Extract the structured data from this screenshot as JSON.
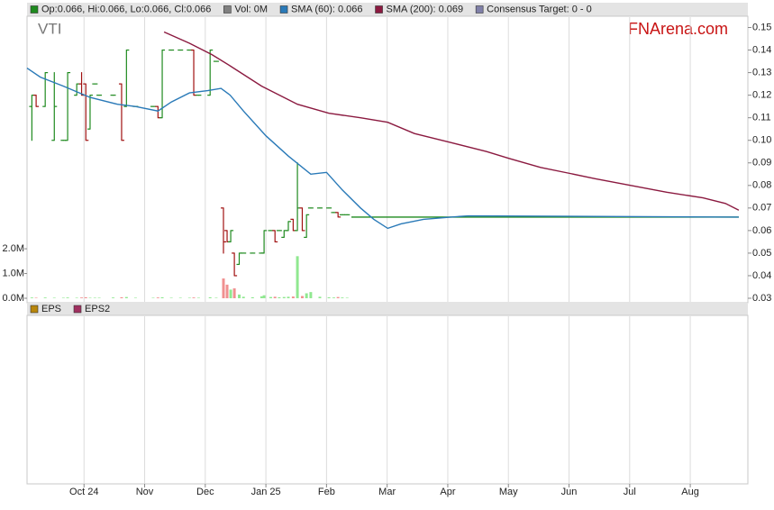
{
  "chart_data": {
    "type": "ohlc",
    "ticker": "VTI",
    "watermark": "FNArena.com",
    "xlim": [
      0.06,
      11.95
    ],
    "xticks": [
      {
        "value": 1,
        "label": "Oct 24"
      },
      {
        "value": 2,
        "label": "Nov"
      },
      {
        "value": 3,
        "label": "Dec"
      },
      {
        "value": 4,
        "label": "Jan 25"
      },
      {
        "value": 5,
        "label": "Feb"
      },
      {
        "value": 6,
        "label": "Mar"
      },
      {
        "value": 7,
        "label": "Apr"
      },
      {
        "value": 8,
        "label": "May"
      },
      {
        "value": 9,
        "label": "Jun"
      },
      {
        "value": 10,
        "label": "Jul"
      },
      {
        "value": 11,
        "label": "Aug"
      }
    ],
    "grid": "x",
    "ylim": [
      0.03,
      0.155
    ],
    "yticks": [
      0.03,
      0.04,
      0.05,
      0.06,
      0.07,
      0.08,
      0.09,
      {
        "value": 0.1,
        "label": "0.10"
      },
      0.11,
      0.12,
      0.13,
      0.14,
      0.15
    ],
    "vol_ylim": [
      0,
      11400000
    ],
    "vol_yticks": [
      {
        "value": 0,
        "label": "0.0M"
      },
      {
        "value": 1000000,
        "label": "1.0M"
      },
      {
        "value": 2000000,
        "label": "2.0M"
      }
    ],
    "price": {
      "name": "Op:0.066, Hi:0.066, Lo:0.066, Cl:0.066",
      "up_color": "#1f8a1f",
      "down_color": "#a01010",
      "x": [
        0.14,
        0.21,
        0.36,
        0.51,
        0.66,
        0.73,
        0.88,
        0.96,
        1.03,
        1.1,
        1.18,
        1.25,
        1.48,
        1.62,
        1.7,
        1.85,
        2.14,
        2.22,
        2.29,
        2.44,
        2.59,
        2.74,
        2.81,
        2.89,
        3.08,
        3.18,
        3.3,
        3.36,
        3.42,
        3.48,
        3.56,
        3.63,
        3.78,
        3.93,
        3.97,
        4.08,
        4.15,
        4.22,
        4.3,
        4.37,
        4.45,
        4.52,
        4.6,
        4.67,
        4.74,
        4.89,
        5.04,
        5.12,
        5.19,
        5.26,
        5.34
      ],
      "open": [
        0.115,
        0.12,
        0.115,
        0.1,
        0.1,
        0.1,
        0.12,
        0.125,
        0.125,
        0.105,
        0.125,
        0.12,
        0.12,
        0.125,
        0.115,
        0.115,
        0.115,
        0.115,
        0.11,
        0.14,
        0.14,
        0.14,
        0.14,
        0.12,
        0.12,
        0.135,
        0.07,
        0.06,
        0.055,
        0.05,
        0.045,
        0.05,
        0.05,
        0.05,
        0.05,
        0.06,
        0.06,
        0.06,
        0.057,
        0.06,
        0.065,
        0.06,
        0.07,
        0.057,
        0.07,
        0.07,
        0.07,
        0.068,
        0.068,
        0.067,
        0.067
      ],
      "high": [
        0.12,
        0.12,
        0.13,
        0.13,
        0.1,
        0.13,
        0.125,
        0.13,
        0.125,
        0.12,
        0.125,
        0.12,
        0.12,
        0.125,
        0.14,
        0.115,
        0.115,
        0.115,
        0.14,
        0.14,
        0.14,
        0.14,
        0.14,
        0.12,
        0.14,
        0.135,
        0.07,
        0.06,
        0.06,
        0.05,
        0.05,
        0.05,
        0.05,
        0.05,
        0.06,
        0.06,
        0.06,
        0.06,
        0.06,
        0.064,
        0.065,
        0.09,
        0.07,
        0.067,
        0.07,
        0.07,
        0.07,
        0.068,
        0.068,
        0.067,
        0.067
      ],
      "low": [
        0.1,
        0.115,
        0.115,
        0.1,
        0.1,
        0.1,
        0.12,
        0.12,
        0.1,
        0.105,
        0.125,
        0.12,
        0.12,
        0.1,
        0.115,
        0.115,
        0.115,
        0.11,
        0.11,
        0.14,
        0.14,
        0.14,
        0.12,
        0.12,
        0.12,
        0.135,
        0.05,
        0.055,
        0.055,
        0.04,
        0.045,
        0.05,
        0.05,
        0.05,
        0.05,
        0.06,
        0.055,
        0.06,
        0.057,
        0.06,
        0.06,
        0.06,
        0.06,
        0.057,
        0.07,
        0.07,
        0.07,
        0.068,
        0.066,
        0.067,
        0.067
      ],
      "close": [
        0.12,
        0.115,
        0.13,
        0.115,
        0.1,
        0.13,
        0.125,
        0.12,
        0.1,
        0.12,
        0.125,
        0.12,
        0.12,
        0.1,
        0.14,
        0.115,
        0.115,
        0.11,
        0.14,
        0.14,
        0.14,
        0.14,
        0.12,
        0.12,
        0.14,
        0.135,
        0.055,
        0.055,
        0.06,
        0.04,
        0.05,
        0.05,
        0.05,
        0.05,
        0.06,
        0.06,
        0.055,
        0.06,
        0.06,
        0.064,
        0.06,
        0.07,
        0.06,
        0.067,
        0.07,
        0.07,
        0.07,
        0.068,
        0.066,
        0.067,
        0.067
      ]
    },
    "last": {
      "x": [
        5.41,
        11.8
      ],
      "values": [
        0.066,
        0.066
      ],
      "color": "#1f8a1f"
    },
    "volume": {
      "name": "Vol: 0M",
      "color": "#808080",
      "up_color": "#90e890",
      "down_color": "#f09090",
      "values": [
        30000,
        20000,
        30000,
        20000,
        20000,
        30000,
        20000,
        30000,
        40000,
        20000,
        20000,
        20000,
        30000,
        40000,
        50000,
        20000,
        20000,
        30000,
        40000,
        20000,
        20000,
        20000,
        30000,
        20000,
        40000,
        20000,
        800000,
        550000,
        350000,
        400000,
        150000,
        60000,
        40000,
        80000,
        120000,
        50000,
        60000,
        40000,
        50000,
        60000,
        70000,
        1700000,
        90000,
        200000,
        250000,
        60000,
        40000,
        30000,
        50000,
        30000,
        20000
      ]
    },
    "series": [
      {
        "name": "SMA (60): 0.066",
        "color": "#2a7ab8",
        "x": [
          0.06,
          0.28,
          0.66,
          1.1,
          1.55,
          1.85,
          2.22,
          2.44,
          2.74,
          3.04,
          3.26,
          3.41,
          3.63,
          4.0,
          4.37,
          4.74,
          5.0,
          5.26,
          5.56,
          5.78,
          6.01,
          6.23,
          6.6,
          7.05,
          7.34,
          11.8
        ],
        "values": [
          0.132,
          0.128,
          0.124,
          0.119,
          0.116,
          0.115,
          0.113,
          0.117,
          0.121,
          0.122,
          0.123,
          0.12,
          0.113,
          0.102,
          0.093,
          0.085,
          0.0858,
          0.078,
          0.07,
          0.065,
          0.061,
          0.063,
          0.065,
          0.066,
          0.0665,
          0.066
        ]
      },
      {
        "name": "SMA (200): 0.069",
        "color": "#8b1a40",
        "x": [
          2.32,
          2.74,
          3.11,
          3.41,
          3.93,
          4.52,
          5.04,
          5.56,
          6.01,
          6.45,
          7.05,
          7.64,
          8.01,
          8.53,
          8.98,
          9.43,
          10.02,
          10.61,
          11.21,
          11.58,
          11.8
        ],
        "values": [
          0.148,
          0.143,
          0.138,
          0.133,
          0.124,
          0.116,
          0.112,
          0.11,
          0.108,
          0.103,
          0.099,
          0.095,
          0.092,
          0.088,
          0.0855,
          0.083,
          0.08,
          0.077,
          0.0745,
          0.072,
          0.069
        ]
      }
    ],
    "target": {
      "name": "Consensus Target: 0 - 0",
      "color": "#8080a8"
    },
    "lower_panel": {
      "series": [
        {
          "name": "EPS",
          "color": "#b8860b"
        },
        {
          "name": "EPS2",
          "color": "#a03060"
        }
      ]
    }
  }
}
